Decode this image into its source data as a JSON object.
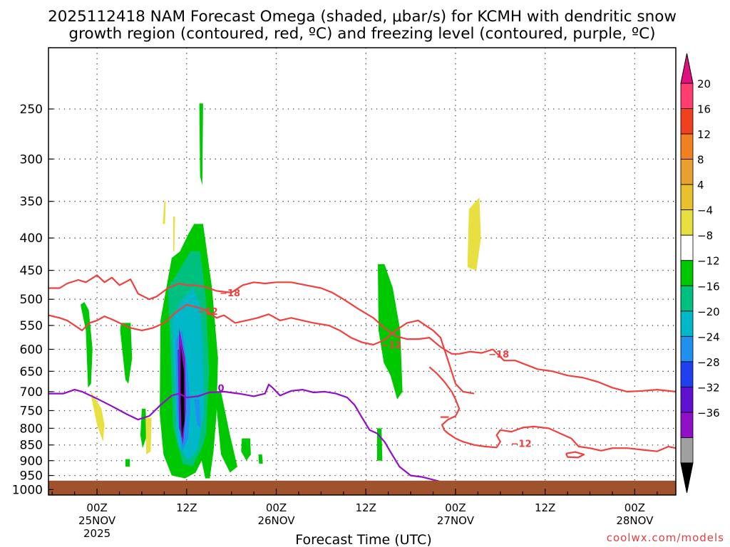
{
  "chart_data": {
    "type": "heatmap",
    "title_line1": "2025112418 NAM Forecast Omega (shaded, μbar/s) for KCMH with dendritic snow",
    "title_line2": "growth region (contoured, red, ºC) and freezing level (contoured, purple, ºC)",
    "xlabel": "Forecast Time (UTC)",
    "credit": "coolwx.com/models",
    "x_ticks": [
      {
        "hour": 0,
        "label": "00Z",
        "date": "25NOV",
        "year": "2025"
      },
      {
        "hour": 12,
        "label": "12Z",
        "date": "",
        "year": ""
      },
      {
        "hour": 24,
        "label": "00Z",
        "date": "26NOV",
        "year": ""
      },
      {
        "hour": 36,
        "label": "12Z",
        "date": "",
        "year": ""
      },
      {
        "hour": 48,
        "label": "00Z",
        "date": "27NOV",
        "year": ""
      },
      {
        "hour": 60,
        "label": "12Z",
        "date": "",
        "year": ""
      },
      {
        "hour": 72,
        "label": "00Z",
        "date": "28NOV",
        "year": ""
      }
    ],
    "x_range": [
      -6.5,
      77.5
    ],
    "y_ticks": [
      250,
      300,
      350,
      400,
      450,
      500,
      550,
      600,
      650,
      700,
      750,
      800,
      850,
      900,
      950,
      1000
    ],
    "y_range_hPa": [
      200,
      1020
    ],
    "y_scale": "log",
    "grid": true,
    "colorbar": {
      "labels": [
        "20",
        "16",
        "12",
        "8",
        "4",
        "−4",
        "−8",
        "−12",
        "−16",
        "−20",
        "−24",
        "−28",
        "−32",
        "−36"
      ],
      "colors": [
        "#ff3d6e",
        "#f04020",
        "#f08020",
        "#e8a030",
        "#e8c030",
        "#e8e040",
        "#ffffff",
        "#00c800",
        "#00c080",
        "#00b8c8",
        "#2090f0",
        "#2040f0",
        "#6010d0",
        "#9010c8",
        "#a0a0a0"
      ],
      "top_arrow_color": "#e0107e",
      "bottom_arrow_color": "#000000"
    },
    "omega_areas": [
      {
        "value": -8,
        "color": "#00c800",
        "hours": [
          -2.2,
          -1.5,
          -1.2,
          -0.8,
          -0.6,
          -1.1,
          -1.7
        ],
        "hpa": [
          510,
          560,
          690,
          680,
          600,
          520,
          505
        ]
      },
      {
        "value": -8,
        "color": "#00c800",
        "hours": [
          3.2,
          4.5,
          4.7,
          4.2,
          3.8,
          3.1
        ],
        "hpa": [
          545,
          545,
          620,
          680,
          670,
          560
        ]
      },
      {
        "value": -8,
        "color": "#00c800",
        "hours": [
          6.0,
          6.5,
          6.7,
          6.1,
          5.8
        ],
        "hpa": [
          745,
          745,
          820,
          860,
          820
        ]
      },
      {
        "value": -8,
        "color": "#00c800",
        "hours": [
          3.8,
          4.4,
          4.4,
          3.8
        ],
        "hpa": [
          895,
          895,
          920,
          920
        ]
      },
      {
        "value": -8,
        "color": "#00c800",
        "hours": [
          8.5,
          10.0,
          11.1,
          12.2,
          13.0,
          14.2,
          15.4,
          16.2,
          16.0,
          15.6,
          15.1,
          14.5,
          14.0,
          13.2,
          11.8,
          10.0,
          8.9,
          8.4
        ],
        "hpa": [
          540,
          430,
          420,
          395,
          380,
          380,
          480,
          620,
          760,
          870,
          960,
          960,
          900,
          940,
          960,
          950,
          880,
          760
        ]
      },
      {
        "value": -8,
        "color": "#00c800",
        "hours": [
          15.8,
          16.6,
          17.8,
          18.8,
          17.8,
          16.6
        ],
        "hpa": [
          700,
          700,
          820,
          920,
          940,
          880
        ]
      },
      {
        "value": -8,
        "color": "#00c800",
        "hours": [
          19.4,
          20.5,
          20.6,
          20.0,
          19.3
        ],
        "hpa": [
          830,
          830,
          880,
          900,
          870
        ]
      },
      {
        "value": -8,
        "color": "#00c800",
        "hours": [
          21.6,
          22.1,
          22.2,
          21.7
        ],
        "hpa": [
          880,
          880,
          910,
          910
        ]
      },
      {
        "value": -8,
        "color": "#00c800",
        "hours": [
          13.7,
          14.2,
          14.1,
          13.8
        ],
        "hpa": [
          245,
          245,
          330,
          320
        ]
      },
      {
        "value": -8,
        "color": "#00c800",
        "hours": [
          37.6,
          38.5,
          39.6,
          40.6,
          40.9,
          40.2,
          39.3,
          38.4,
          37.7
        ],
        "hpa": [
          440,
          440,
          480,
          560,
          700,
          720,
          660,
          630,
          560
        ]
      },
      {
        "value": -8,
        "color": "#00c800",
        "hours": [
          37.5,
          38.1,
          38.2,
          37.5
        ],
        "hpa": [
          800,
          800,
          900,
          900
        ]
      },
      {
        "value": -12,
        "color": "#00c080",
        "hours": [
          9.5,
          11.0,
          12.5,
          13.8,
          14.6,
          15.0,
          14.6,
          14.0,
          12.8,
          11.5,
          10.2
        ],
        "hpa": [
          480,
          450,
          420,
          420,
          500,
          650,
          820,
          860,
          920,
          910,
          800
        ]
      },
      {
        "value": -16,
        "color": "#00b8c8",
        "hours": [
          10.0,
          11.2,
          12.8,
          13.8,
          14.2,
          14.3,
          13.4,
          12.2,
          10.8,
          10.4
        ],
        "hpa": [
          540,
          505,
          480,
          510,
          600,
          760,
          870,
          900,
          850,
          680
        ]
      },
      {
        "value": -20,
        "color": "#2090f0",
        "hours": [
          10.5,
          11.4,
          12.1,
          12.5,
          12.2,
          11.4,
          10.7
        ],
        "hpa": [
          580,
          560,
          640,
          740,
          830,
          870,
          760
        ]
      },
      {
        "value": -20,
        "color": "#2090f0",
        "hours": [
          13.0,
          13.7,
          13.9,
          13.4
        ],
        "hpa": [
          720,
          720,
          800,
          790
        ]
      },
      {
        "value": -24,
        "color": "#2040f0",
        "hours": [
          10.8,
          11.6,
          11.9,
          11.6,
          11.0
        ],
        "hpa": [
          600,
          610,
          720,
          830,
          800
        ]
      },
      {
        "value": -32,
        "color": "#9010c8",
        "hours": [
          11.0,
          11.8,
          11.9,
          11.5,
          11.1,
          10.9
        ],
        "hpa": [
          555,
          620,
          750,
          850,
          800,
          680
        ]
      },
      {
        "value": -36,
        "color": "#000000",
        "hours": [
          11.2,
          11.65,
          11.7,
          11.35,
          11.2
        ],
        "hpa": [
          590,
          650,
          780,
          830,
          720
        ]
      },
      {
        "value": 4,
        "color": "#e8e040",
        "hours": [
          -0.8,
          0.6,
          1.0,
          0.8,
          0.0,
          -0.7
        ],
        "hpa": [
          700,
          745,
          790,
          840,
          790,
          720
        ]
      },
      {
        "value": 4,
        "color": "#e8e040",
        "hours": [
          6.5,
          7.3,
          7.2,
          6.6
        ],
        "hpa": [
          770,
          770,
          870,
          880
        ]
      },
      {
        "value": 4,
        "color": "#e8e040",
        "hours": [
          9.0,
          9.2,
          9.1,
          8.8
        ],
        "hpa": [
          350,
          350,
          380,
          380
        ]
      },
      {
        "value": 4,
        "color": "#e8e040",
        "hours": [
          10.2,
          10.45,
          10.35,
          10.2
        ],
        "hpa": [
          370,
          370,
          420,
          420
        ]
      },
      {
        "value": 4,
        "color": "#e8e040",
        "hours": [
          49.8,
          51.2,
          51.4,
          50.8,
          49.6
        ],
        "hpa": [
          360,
          345,
          400,
          450,
          445
        ]
      }
    ],
    "freezing_level": {
      "label": "0",
      "color": "#9010c8",
      "hours": [
        -6.5,
        -4.5,
        -3.0,
        -2.0,
        0.0,
        2.0,
        4.0,
        5.5,
        7.0,
        8.5,
        10.0,
        11.0,
        12.0,
        13.5,
        15.0,
        17.0,
        19.0,
        21.0,
        22.5,
        23.0,
        23.5,
        24.5,
        26.0,
        27.5,
        29.0,
        30.5,
        32.0,
        33.5,
        34.5,
        35.5,
        36.5,
        37.5,
        38.5,
        39.5,
        40.5,
        42.0,
        43.5,
        45.0,
        46.5,
        48.0,
        49.5
      ],
      "hpa": [
        705,
        705,
        695,
        700,
        718,
        738,
        760,
        775,
        765,
        735,
        710,
        705,
        715,
        712,
        702,
        700,
        705,
        712,
        705,
        682,
        690,
        710,
        698,
        695,
        702,
        700,
        705,
        715,
        735,
        770,
        805,
        815,
        840,
        880,
        920,
        950,
        955,
        965,
        975,
        985,
        995
      ]
    },
    "temperature_contours": [
      {
        "label": "−18",
        "color": "#f04040",
        "hours": [
          -6.5,
          -5.0,
          -4.0,
          -2.5,
          -1.5,
          0.0,
          1.0,
          2.0,
          3.0,
          4.5,
          5.5,
          7.0,
          8.0,
          9.5,
          11.0,
          12.0,
          13.0,
          14.5,
          16.0,
          18.0,
          19.5,
          21.0,
          22.5,
          24.0,
          26.0,
          28.0,
          30.0,
          31.5,
          33.0,
          35.0,
          37.0,
          38.5,
          40.0,
          41.5,
          43.0,
          44.5,
          46.0,
          47.5,
          48.5,
          50.0,
          51.5,
          53.0,
          54.5,
          56.0,
          57.5,
          59.0,
          61.0,
          63.0,
          65.0,
          67.0,
          69.0,
          71.0,
          73.0,
          75.0,
          77.5
        ],
        "hpa": [
          480,
          480,
          472,
          466,
          470,
          458,
          470,
          462,
          475,
          465,
          490,
          500,
          495,
          480,
          472,
          475,
          475,
          478,
          485,
          488,
          475,
          470,
          472,
          470,
          470,
          475,
          480,
          488,
          500,
          518,
          535,
          555,
          572,
          578,
          578,
          575,
          595,
          610,
          610,
          605,
          608,
          600,
          625,
          625,
          635,
          645,
          650,
          660,
          665,
          675,
          690,
          700,
          698,
          695,
          700
        ]
      },
      {
        "label": "−12",
        "color": "#f04040",
        "hours": [
          -6.5,
          -5.0,
          -4.0,
          -3.0,
          -2.0,
          -1.0,
          0.0,
          1.0,
          2.0,
          3.0,
          4.5,
          6.0,
          7.5,
          9.0,
          10.5,
          12.0,
          13.5,
          14.5,
          16.0,
          17.0,
          18.5,
          20.0,
          21.5,
          23.0,
          24.5,
          26.0,
          27.5,
          29.0,
          31.0,
          32.5,
          34.0,
          35.5,
          37.0,
          38.5,
          40.0,
          41.5,
          43.0,
          44.0,
          45.0,
          46.0,
          47.0,
          48.0,
          49.0,
          50.5
        ],
        "hpa": [
          530,
          535,
          540,
          550,
          560,
          545,
          540,
          532,
          538,
          545,
          555,
          560,
          555,
          545,
          525,
          510,
          515,
          520,
          535,
          530,
          545,
          540,
          535,
          528,
          540,
          535,
          540,
          545,
          550,
          560,
          575,
          585,
          590,
          580,
          560,
          545,
          540,
          550,
          560,
          575,
          625,
          680,
          700,
          705
        ]
      },
      {
        "label": "",
        "color": "#f04040",
        "hours": [
          44.5,
          45.5,
          46.5,
          47.5,
          48.0,
          48.5,
          48.0,
          47.0,
          46.2,
          46.5,
          47.0,
          48.0,
          49.0,
          50.5,
          52.0,
          53.5,
          54.0,
          53.5,
          54.0,
          55.5,
          57.0,
          58.5,
          60.5,
          62.0,
          63.5,
          64.5,
          66.0,
          67.5,
          69.0,
          71.0,
          73.0,
          75.0,
          76.5,
          77.5
        ],
        "hpa": [
          640,
          655,
          675,
          700,
          720,
          745,
          765,
          775,
          790,
          805,
          815,
          830,
          840,
          850,
          855,
          858,
          840,
          820,
          805,
          810,
          798,
          795,
          800,
          815,
          830,
          855,
          860,
          868,
          860,
          860,
          865,
          870,
          855,
          860
        ]
      },
      {
        "label": "",
        "color": "#f04040",
        "hours": [
          46.0,
          47.1
        ],
        "hpa": [
          768,
          768
        ]
      },
      {
        "label": "",
        "color": "#f04040",
        "hours": [
          62.8,
          64.0,
          65.2,
          64.4,
          63.0,
          62.8
        ],
        "hpa": [
          877,
          872,
          880,
          890,
          888,
          877
        ]
      }
    ],
    "contour_labels": [
      {
        "text": "−18",
        "hour": 17.8,
        "hpa": 488,
        "color": "#f04040"
      },
      {
        "text": "−12",
        "hour": 14.8,
        "hpa": 522,
        "color": "#f04040"
      },
      {
        "text": "−12",
        "hour": 39.4,
        "hpa": 590,
        "color": "#f04040"
      },
      {
        "text": "−18",
        "hour": 53.8,
        "hpa": 610,
        "color": "#f04040"
      },
      {
        "text": "−12",
        "hour": 56.8,
        "hpa": 845,
        "color": "#f04040"
      },
      {
        "text": "0",
        "hour": 16.6,
        "hpa": 690,
        "color": "#9010c8"
      }
    ],
    "ground": {
      "color": "#a0522d",
      "surface_hpa": 968
    }
  }
}
